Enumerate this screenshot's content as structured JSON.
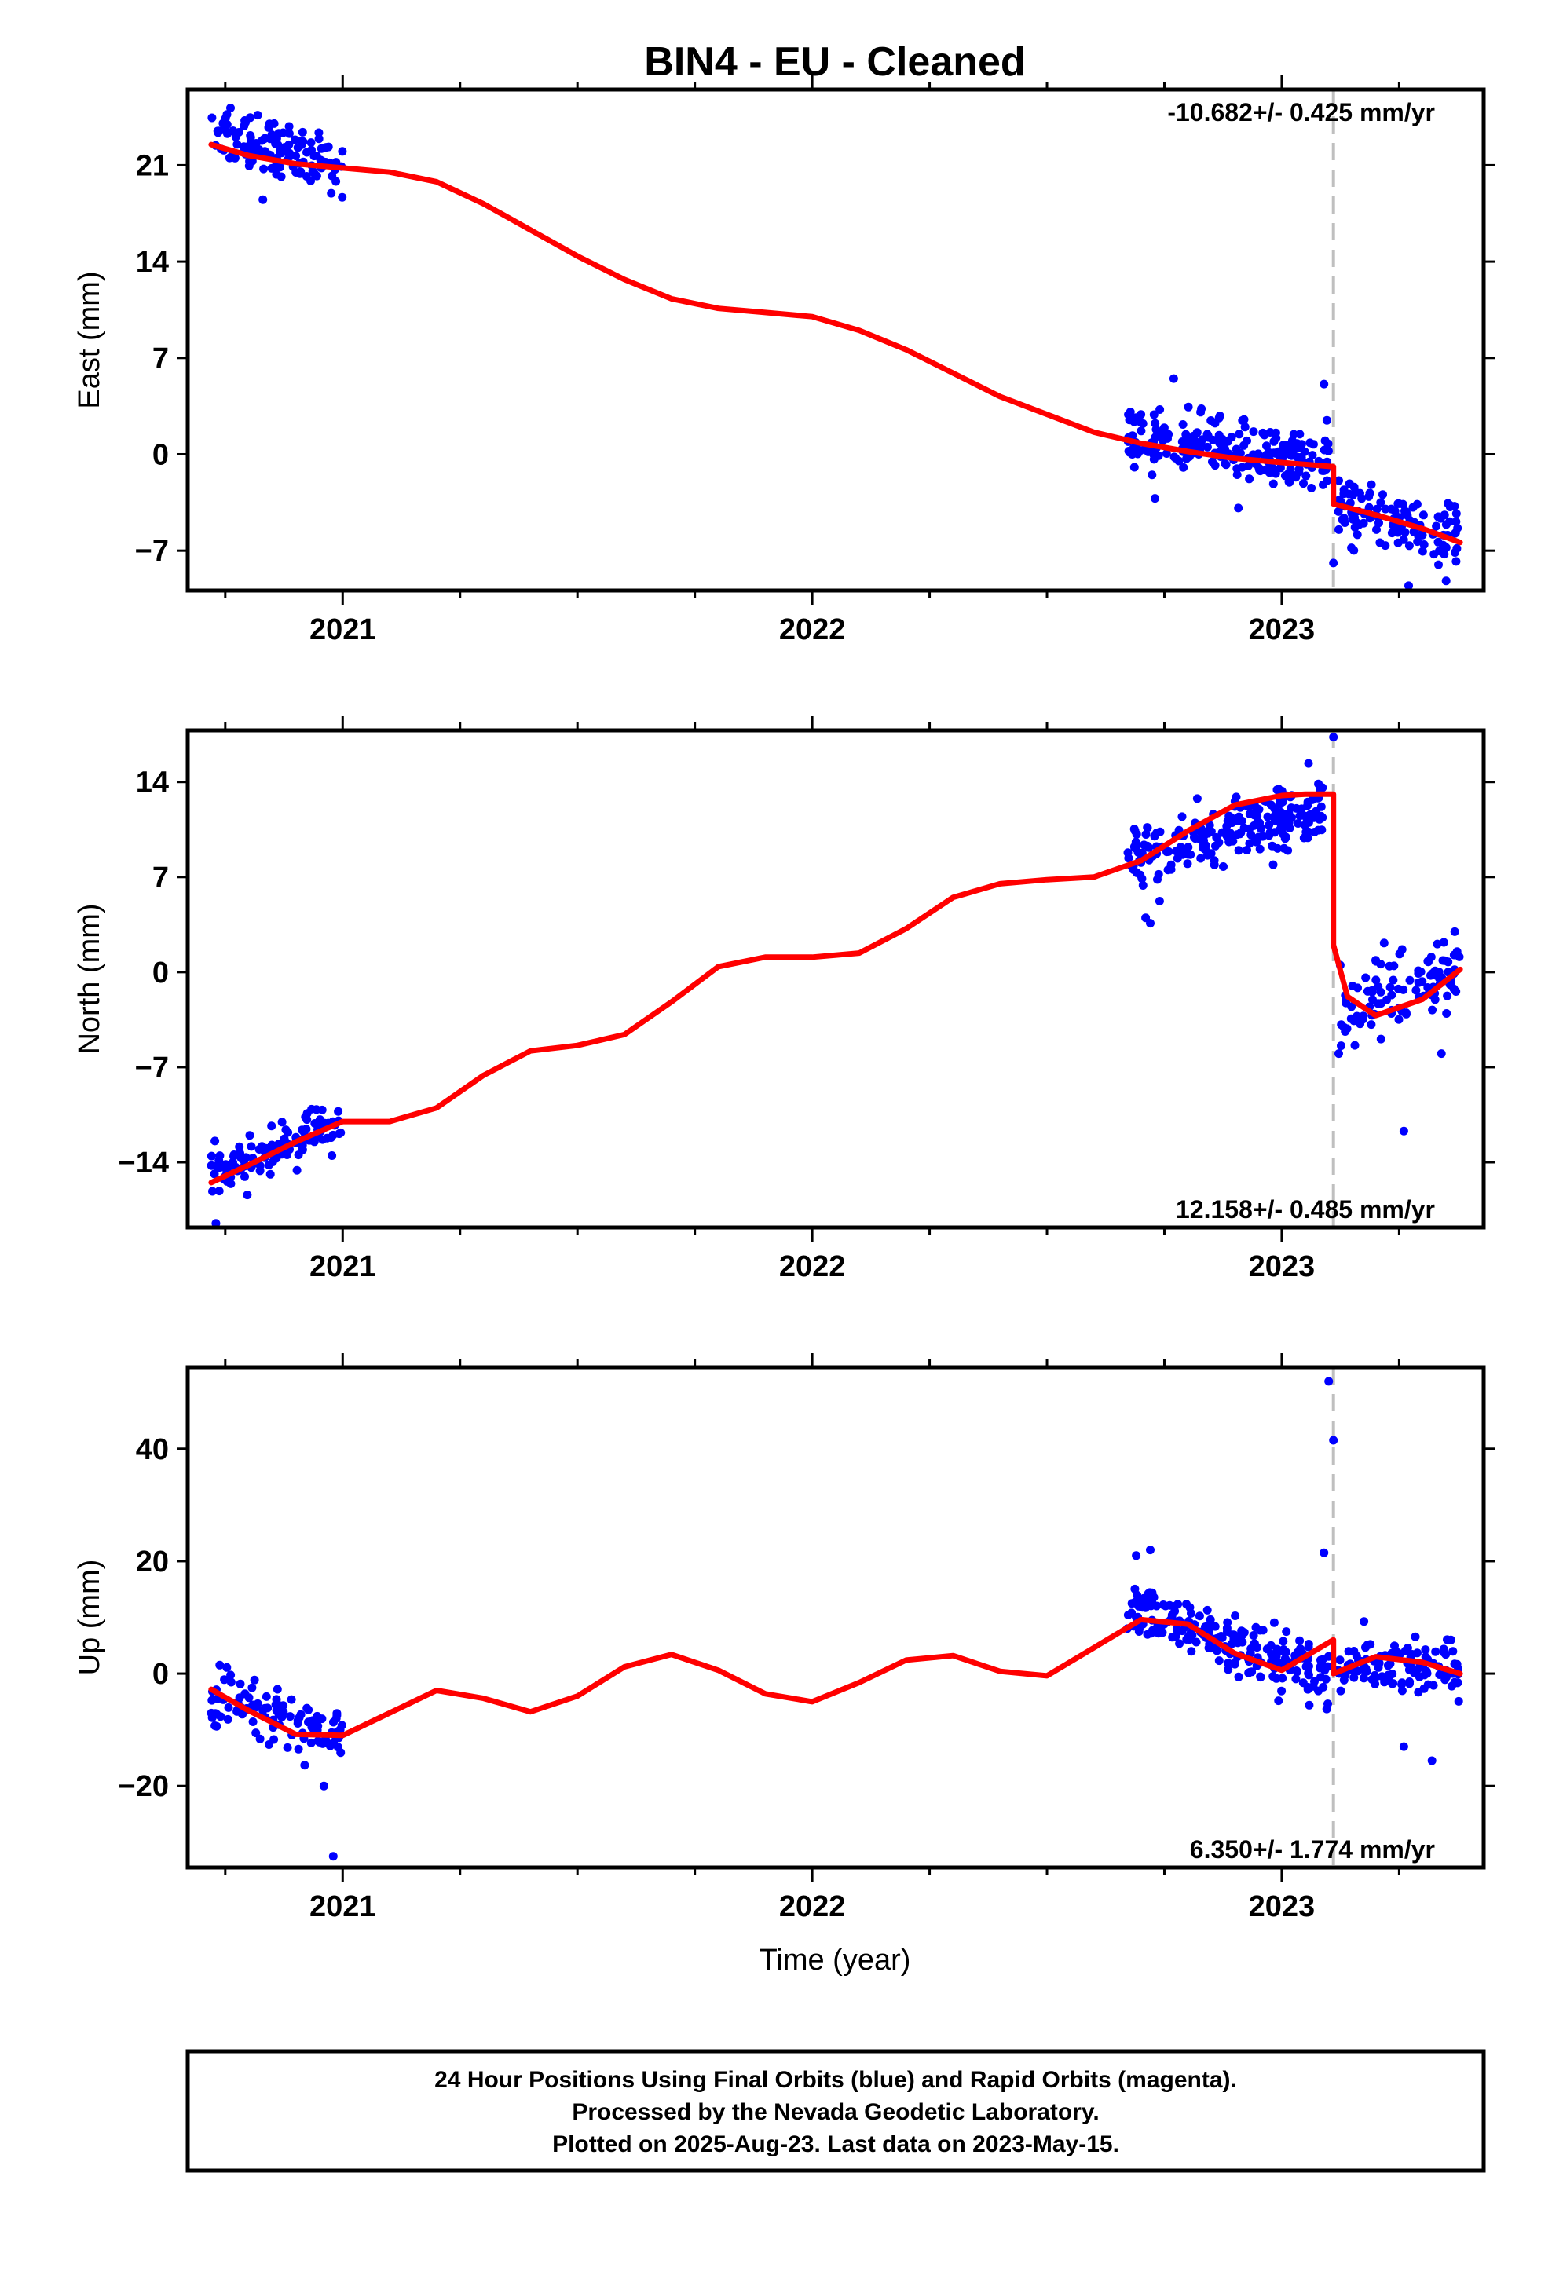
{
  "title": "BIN4  - EU - Cleaned",
  "x_axis_label": "Time (year)",
  "footer": {
    "lines": [
      "24 Hour Positions Using Final Orbits (blue) and Rapid Orbits (magenta).",
      "Processed by the Nevada Geodetic Laboratory.",
      "Plotted on 2025-Aug-23. Last data on 2023-May-15."
    ]
  },
  "colors": {
    "points": "#0000ff",
    "model": "#ff0000",
    "event_line": "#bfbfbf"
  },
  "chart_data": [
    {
      "type": "scatter",
      "ylabel": "East (mm)",
      "rate_label": "-10.682+/- 0.425 mm/yr",
      "xlim": [
        2020.67,
        2023.43
      ],
      "ylim": [
        -9.9,
        26.5
      ],
      "y_ticks": [
        21,
        14,
        7,
        0,
        -7
      ],
      "y_tick_labels": [
        "21",
        "14",
        "7",
        "0",
        "−7"
      ],
      "x_ticks": [
        2021,
        2022,
        2023
      ],
      "x_tick_labels": [
        "2021",
        "2022",
        "2023"
      ],
      "event_line_x": 2023.11,
      "model": {
        "x": [
          2020.72,
          2020.8,
          2020.9,
          2021.0,
          2021.1,
          2021.2,
          2021.3,
          2021.4,
          2021.5,
          2021.6,
          2021.7,
          2021.8,
          2021.9,
          2022.0,
          2022.1,
          2022.2,
          2022.3,
          2022.4,
          2022.5,
          2022.6,
          2022.7,
          2022.8,
          2022.9,
          2023.0,
          2023.11,
          2023.11,
          2023.2,
          2023.3,
          2023.38
        ],
        "y": [
          22.5,
          21.7,
          21.1,
          20.8,
          20.5,
          19.8,
          18.2,
          16.3,
          14.4,
          12.7,
          11.3,
          10.6,
          10.3,
          10.0,
          9.0,
          7.6,
          5.9,
          4.2,
          2.9,
          1.6,
          0.8,
          0.2,
          -0.3,
          -0.6,
          -0.9,
          -3.6,
          -4.4,
          -5.4,
          -6.4
        ]
      },
      "points": [
        {
          "x0": 2020.72,
          "x1": 2021.0,
          "y0": 23.6,
          "y1": 20.6,
          "n": 130,
          "sd": 1.3
        },
        {
          "x0": 2022.67,
          "x1": 2023.1,
          "y0": 1.3,
          "y1": -0.6,
          "n": 220,
          "sd": 1.3
        },
        {
          "x0": 2023.12,
          "x1": 2023.38,
          "y0": -4.0,
          "y1": -6.2,
          "n": 120,
          "sd": 1.5
        }
      ],
      "outliers": [
        {
          "x": 2020.83,
          "y": 18.5
        },
        {
          "x": 2022.77,
          "y": 5.5
        },
        {
          "x": 2023.09,
          "y": 5.1
        },
        {
          "x": 2022.73,
          "y": -3.2
        },
        {
          "x": 2023.11,
          "y": -7.9
        },
        {
          "x": 2023.35,
          "y": -9.2
        }
      ]
    },
    {
      "type": "scatter",
      "ylabel": "North (mm)",
      "rate_label": "12.158+/- 0.485 mm/yr",
      "xlim": [
        2020.67,
        2023.43
      ],
      "ylim": [
        -18.8,
        17.8
      ],
      "y_ticks": [
        14,
        7,
        0,
        -7,
        -14
      ],
      "y_tick_labels": [
        "14",
        "7",
        "0",
        "−7",
        "−14"
      ],
      "x_ticks": [
        2021,
        2022,
        2023
      ],
      "x_tick_labels": [
        "2021",
        "2022",
        "2023"
      ],
      "event_line_x": 2023.11,
      "model": {
        "x": [
          2020.72,
          2020.8,
          2020.9,
          2021.0,
          2021.1,
          2021.2,
          2021.3,
          2021.4,
          2021.5,
          2021.6,
          2021.7,
          2021.8,
          2021.9,
          2022.0,
          2022.1,
          2022.2,
          2022.3,
          2022.4,
          2022.5,
          2022.6,
          2022.7,
          2022.8,
          2022.9,
          2023.0,
          2023.05,
          2023.11,
          2023.11,
          2023.14,
          2023.2,
          2023.3,
          2023.38
        ],
        "y": [
          -15.5,
          -14.2,
          -12.5,
          -11.0,
          -11.0,
          -10.0,
          -7.6,
          -5.8,
          -5.4,
          -4.6,
          -2.2,
          0.4,
          1.1,
          1.1,
          1.4,
          3.2,
          5.5,
          6.5,
          6.8,
          7.0,
          8.2,
          10.4,
          12.3,
          13.0,
          13.1,
          13.1,
          2.0,
          -1.8,
          -3.2,
          -2.0,
          0.2
        ]
      },
      "points": [
        {
          "x0": 2020.72,
          "x1": 2021.0,
          "y0": -15.0,
          "y1": -11.0,
          "n": 120,
          "sd": 1.1
        },
        {
          "x0": 2022.67,
          "x1": 2023.1,
          "y0": 8.3,
          "y1": 12.5,
          "n": 220,
          "sd": 1.4
        },
        {
          "x0": 2023.12,
          "x1": 2023.38,
          "y0": -3.2,
          "y1": 0.3,
          "n": 110,
          "sd": 1.6
        }
      ],
      "outliers": [
        {
          "x": 2020.73,
          "y": -18.5
        },
        {
          "x": 2022.71,
          "y": 4.0
        },
        {
          "x": 2022.72,
          "y": 3.6
        },
        {
          "x": 2023.11,
          "y": 17.3
        },
        {
          "x": 2023.26,
          "y": -11.7
        },
        {
          "x": 2023.34,
          "y": -6.0
        }
      ]
    },
    {
      "type": "scatter",
      "ylabel": "Up (mm)",
      "rate_label": "6.350+/- 1.774 mm/yr",
      "xlim": [
        2020.67,
        2023.43
      ],
      "ylim": [
        -34.5,
        54.5
      ],
      "y_ticks": [
        40,
        20,
        0,
        -20
      ],
      "y_tick_labels": [
        "40",
        "20",
        "0",
        "−20"
      ],
      "x_ticks": [
        2021,
        2022,
        2023
      ],
      "x_tick_labels": [
        "2021",
        "2022",
        "2023"
      ],
      "event_line_x": 2023.11,
      "model": {
        "x": [
          2020.72,
          2020.8,
          2020.9,
          2021.0,
          2021.1,
          2021.2,
          2021.3,
          2021.4,
          2021.5,
          2021.6,
          2021.7,
          2021.8,
          2021.9,
          2022.0,
          2022.1,
          2022.2,
          2022.3,
          2022.4,
          2022.5,
          2022.6,
          2022.7,
          2022.8,
          2022.9,
          2023.0,
          2023.11,
          2023.11,
          2023.2,
          2023.3,
          2023.38
        ],
        "y": [
          -2.8,
          -6.6,
          -10.8,
          -11.0,
          -7.0,
          -3.0,
          -4.4,
          -6.8,
          -4.0,
          1.2,
          3.4,
          0.6,
          -3.6,
          -5.0,
          -1.6,
          2.4,
          3.2,
          0.4,
          -0.4,
          4.6,
          9.6,
          8.8,
          3.6,
          0.6,
          6.0,
          0.0,
          3.0,
          2.0,
          0.0
        ]
      },
      "points": [
        {
          "x0": 2020.72,
          "x1": 2021.0,
          "y0": -4.0,
          "y1": -11.5,
          "n": 110,
          "sd": 3.0
        },
        {
          "x0": 2022.67,
          "x1": 2023.1,
          "y0": 12.0,
          "y1": 0.0,
          "n": 220,
          "sd": 3.0
        },
        {
          "x0": 2023.12,
          "x1": 2023.38,
          "y0": 2.0,
          "y1": 1.0,
          "n": 110,
          "sd": 3.2
        }
      ],
      "outliers": [
        {
          "x": 2020.98,
          "y": -32.5
        },
        {
          "x": 2023.1,
          "y": 52.0
        },
        {
          "x": 2023.11,
          "y": 41.5
        },
        {
          "x": 2023.09,
          "y": 21.5
        },
        {
          "x": 2022.69,
          "y": 21.0
        },
        {
          "x": 2022.72,
          "y": 22.0
        },
        {
          "x": 2023.32,
          "y": -15.5
        },
        {
          "x": 2023.26,
          "y": -13.0
        },
        {
          "x": 2020.96,
          "y": -20.0
        }
      ]
    }
  ]
}
